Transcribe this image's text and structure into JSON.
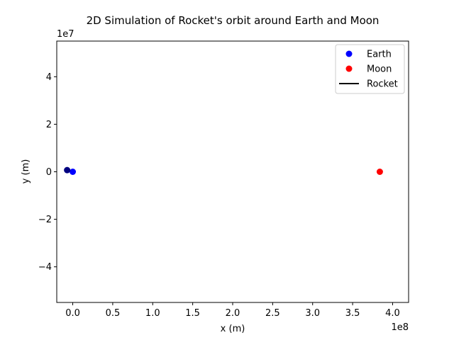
{
  "chart_data": {
    "type": "scatter",
    "title": "2D Simulation of Rocket's orbit around Earth and Moon",
    "xlabel": "x (m)",
    "ylabel": "y (m)",
    "x_offset_label": "1e8",
    "y_offset_label": "1e7",
    "xlim": [
      -20000000,
      420000000
    ],
    "ylim": [
      -55000000,
      55000000
    ],
    "x_ticks": [
      {
        "value": 0,
        "label": "0.0"
      },
      {
        "value": 50000000,
        "label": "0.5"
      },
      {
        "value": 100000000,
        "label": "1.0"
      },
      {
        "value": 150000000,
        "label": "1.5"
      },
      {
        "value": 200000000,
        "label": "2.0"
      },
      {
        "value": 250000000,
        "label": "2.5"
      },
      {
        "value": 300000000,
        "label": "3.0"
      },
      {
        "value": 350000000,
        "label": "3.5"
      },
      {
        "value": 400000000,
        "label": "4.0"
      }
    ],
    "y_ticks": [
      {
        "value": 40000000,
        "label": "4"
      },
      {
        "value": 20000000,
        "label": "2"
      },
      {
        "value": 0,
        "label": "0"
      },
      {
        "value": -20000000,
        "label": "−2"
      },
      {
        "value": -40000000,
        "label": "−4"
      }
    ],
    "grid": false,
    "legend_position": "top-right",
    "series": [
      {
        "name": "Earth",
        "marker": "circle",
        "color": "#0000ff",
        "x": [
          0
        ],
        "y": [
          0
        ]
      },
      {
        "name": "Moon",
        "marker": "circle",
        "color": "#ff0000",
        "x": [
          384000000
        ],
        "y": [
          0
        ]
      },
      {
        "name": "Rocket",
        "marker": "line",
        "color": "#000000",
        "x": [
          -7000000
        ],
        "y": [
          700000
        ]
      }
    ],
    "rocket_point_color": "#000080"
  }
}
